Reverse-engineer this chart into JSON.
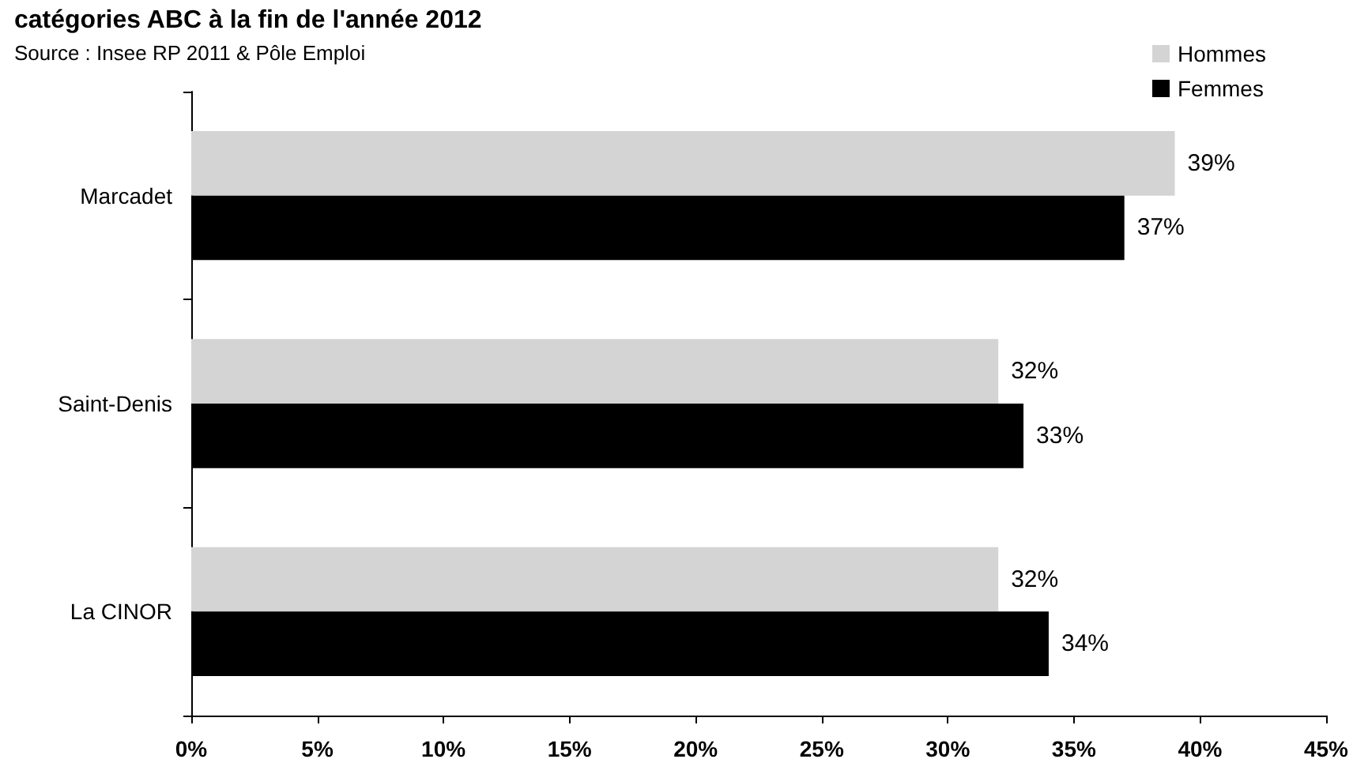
{
  "chart_data": {
    "type": "bar",
    "orientation": "horizontal",
    "title": "catégories ABC à la fin de l'année 2012",
    "subtitle": "Source : Insee RP 2011 & Pôle Emploi",
    "categories": [
      "Marcadet",
      "Saint-Denis",
      "La CINOR"
    ],
    "series": [
      {
        "name": "Hommes",
        "color": "#d4d4d4",
        "values": [
          39,
          32,
          32
        ],
        "value_labels": [
          "39%",
          "32%",
          "32%"
        ]
      },
      {
        "name": "Femmes",
        "color": "#000000",
        "values": [
          37,
          33,
          34
        ],
        "value_labels": [
          "37%",
          "33%",
          "34%"
        ]
      }
    ],
    "xlim": [
      0,
      45
    ],
    "xticks": [
      {
        "value": 0,
        "label": "0%"
      },
      {
        "value": 5,
        "label": "5%"
      },
      {
        "value": 10,
        "label": "10%"
      },
      {
        "value": 15,
        "label": "15%"
      },
      {
        "value": 20,
        "label": "20%"
      },
      {
        "value": 25,
        "label": "25%"
      },
      {
        "value": 30,
        "label": "30%"
      },
      {
        "value": 35,
        "label": "35%"
      },
      {
        "value": 40,
        "label": "40%"
      },
      {
        "value": 45,
        "label": "45%"
      }
    ],
    "grid": false,
    "legend": "top right"
  }
}
